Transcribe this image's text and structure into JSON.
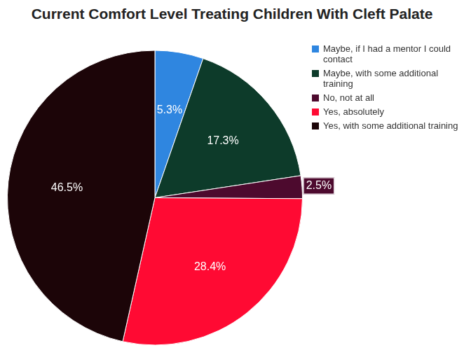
{
  "chart_data": {
    "type": "pie",
    "title": "Current Comfort Level Treating Children With Cleft Palate",
    "categories": [
      "Maybe, if I had a mentor I could contact",
      "Maybe, with some additional training",
      "No, not at all",
      "Yes, absolutely",
      "Yes, with some additional training"
    ],
    "values": [
      5.3,
      17.3,
      2.5,
      28.4,
      46.5
    ],
    "value_labels": [
      "5.3%",
      "17.3%",
      "2.5%",
      "28.4%",
      "46.5%"
    ],
    "colors": [
      "#2f86e0",
      "#0d3b2a",
      "#4d0a2e",
      "#ff0a33",
      "#1c0508"
    ],
    "data_labels": true,
    "legend": "right"
  }
}
